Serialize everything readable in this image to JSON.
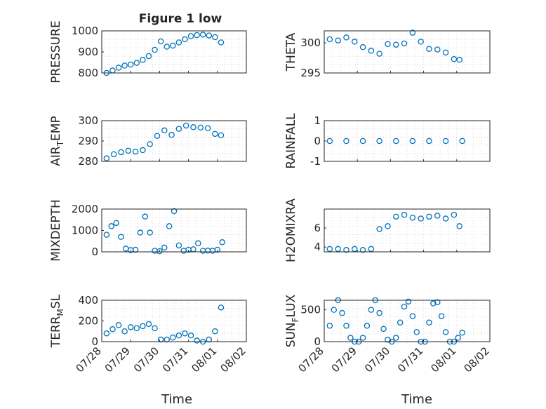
{
  "title": "Figure 1 low",
  "xlabel": "Time",
  "colors": {
    "marker": "#0072BD",
    "axis": "#262626",
    "grid": "#d0d0d0",
    "background": "#ffffff"
  },
  "chart_data": [
    {
      "type": "scatter",
      "marker": "open-circle",
      "ylabel": "PRESSURE",
      "ylim": [
        800,
        1000
      ],
      "yticks": [
        800,
        900,
        1000
      ],
      "xlim": [
        "07/28",
        "08/02"
      ],
      "xticks": [],
      "grid": true,
      "x": [
        "07/28 04:00",
        "07/28 09:00",
        "07/28 14:00",
        "07/28 19:00",
        "07/29 00:00",
        "07/29 05:00",
        "07/29 10:00",
        "07/29 15:00",
        "07/29 20:00",
        "07/30 01:00",
        "07/30 06:00",
        "07/30 11:00",
        "07/30 16:00",
        "07/30 21:00",
        "07/31 02:00",
        "07/31 07:00",
        "07/31 12:00",
        "07/31 17:00",
        "07/31 22:00",
        "08/01 03:00"
      ],
      "y": [
        800,
        812,
        825,
        835,
        840,
        848,
        862,
        880,
        910,
        950,
        925,
        930,
        945,
        960,
        975,
        980,
        982,
        978,
        970,
        945
      ]
    },
    {
      "type": "scatter",
      "marker": "open-circle",
      "ylabel": "THETA",
      "ylim": [
        295,
        302
      ],
      "yticks": [
        295,
        300
      ],
      "xlim": [
        "07/28",
        "08/02"
      ],
      "xticks": [],
      "grid": true,
      "x": [
        "07/28 04:00",
        "07/28 10:00",
        "07/28 16:00",
        "07/28 22:00",
        "07/29 04:00",
        "07/29 10:00",
        "07/29 16:00",
        "07/29 22:00",
        "07/30 04:00",
        "07/30 10:00",
        "07/30 16:00",
        "07/30 22:00",
        "07/31 04:00",
        "07/31 10:00",
        "07/31 16:00",
        "07/31 22:00",
        "08/01 02:00"
      ],
      "y": [
        300.6,
        300.4,
        300.9,
        300.2,
        299.3,
        298.7,
        298.2,
        299.8,
        299.7,
        299.9,
        301.7,
        300.2,
        299.0,
        298.9,
        298.4,
        297.3,
        297.2
      ]
    },
    {
      "type": "scatter",
      "marker": "open-circle",
      "ylabel": "AIR_TEMP",
      "ylabel_display": "AIRTEMP",
      "ylim": [
        280,
        300
      ],
      "yticks": [
        280,
        290,
        300
      ],
      "xlim": [
        "07/28",
        "08/02"
      ],
      "xticks": [],
      "grid": true,
      "x": [
        "07/28 04:00",
        "07/28 10:00",
        "07/28 16:00",
        "07/28 22:00",
        "07/29 04:00",
        "07/29 10:00",
        "07/29 16:00",
        "07/29 22:00",
        "07/30 04:00",
        "07/30 10:00",
        "07/30 16:00",
        "07/30 22:00",
        "07/31 04:00",
        "07/31 10:00",
        "07/31 16:00",
        "07/31 22:00",
        "08/01 03:00"
      ],
      "y": [
        281.5,
        283.5,
        284.5,
        285.2,
        284.8,
        285.5,
        288.5,
        292.5,
        295.2,
        293.0,
        296.0,
        297.6,
        296.8,
        296.6,
        296.3,
        293.5,
        292.8
      ]
    },
    {
      "type": "scatter",
      "marker": "open-circle",
      "ylabel": "RAINFALL",
      "ylim": [
        -1,
        1
      ],
      "yticks": [
        -1,
        0,
        1
      ],
      "xlim": [
        "07/28",
        "08/02"
      ],
      "xticks": [],
      "grid": true,
      "x": [
        "07/28 04:00",
        "07/28 16:00",
        "07/29 04:00",
        "07/29 16:00",
        "07/30 04:00",
        "07/30 16:00",
        "07/31 04:00",
        "07/31 16:00",
        "08/01 04:00"
      ],
      "y": [
        0,
        0,
        0,
        0,
        0,
        0,
        0,
        0,
        0
      ]
    },
    {
      "type": "scatter",
      "marker": "open-circle",
      "ylabel": "MIXDEPTH",
      "ylim": [
        0,
        2000
      ],
      "yticks": [
        0,
        1000,
        2000
      ],
      "xlim": [
        "07/28",
        "08/02"
      ],
      "xticks": [],
      "grid": true,
      "x": [
        "07/28 04:00",
        "07/28 08:00",
        "07/28 12:00",
        "07/28 16:00",
        "07/28 20:00",
        "07/29 00:00",
        "07/29 04:00",
        "07/29 08:00",
        "07/29 12:00",
        "07/29 16:00",
        "07/29 20:00",
        "07/30 00:00",
        "07/30 04:00",
        "07/30 08:00",
        "07/30 12:00",
        "07/30 16:00",
        "07/30 20:00",
        "07/31 00:00",
        "07/31 04:00",
        "07/31 08:00",
        "07/31 12:00",
        "07/31 16:00",
        "07/31 20:00",
        "08/01 00:00",
        "08/01 04:00"
      ],
      "y": [
        800,
        1200,
        1350,
        700,
        150,
        80,
        100,
        900,
        1650,
        900,
        50,
        30,
        200,
        1200,
        1900,
        300,
        50,
        100,
        120,
        400,
        50,
        60,
        50,
        100,
        450
      ]
    },
    {
      "type": "scatter",
      "marker": "open-circle",
      "ylabel": "H2OMIXRA",
      "ylim": [
        3.5,
        8
      ],
      "yticks": [
        4,
        6
      ],
      "xlim": [
        "07/28",
        "08/02"
      ],
      "xticks": [],
      "grid": true,
      "x": [
        "07/28 04:00",
        "07/28 10:00",
        "07/28 16:00",
        "07/28 22:00",
        "07/29 04:00",
        "07/29 10:00",
        "07/29 16:00",
        "07/29 22:00",
        "07/30 04:00",
        "07/30 10:00",
        "07/30 16:00",
        "07/30 22:00",
        "07/31 04:00",
        "07/31 10:00",
        "07/31 16:00",
        "07/31 22:00",
        "08/01 02:00"
      ],
      "y": [
        3.8,
        3.8,
        3.7,
        3.8,
        3.7,
        3.8,
        5.9,
        6.2,
        7.2,
        7.4,
        7.1,
        7.0,
        7.2,
        7.3,
        7.0,
        7.4,
        6.2
      ]
    },
    {
      "type": "scatter",
      "marker": "open-circle",
      "ylabel": "TERR_MSL",
      "ylabel_display": "TERRMSL",
      "ylim": [
        0,
        400
      ],
      "yticks": [
        0,
        200,
        400
      ],
      "xlim": [
        "07/28",
        "08/02"
      ],
      "xticks": [
        "07/28",
        "07/29",
        "07/30",
        "07/31",
        "08/01",
        "08/02"
      ],
      "grid": true,
      "x": [
        "07/28 04:00",
        "07/28 09:00",
        "07/28 14:00",
        "07/28 19:00",
        "07/29 00:00",
        "07/29 05:00",
        "07/29 10:00",
        "07/29 15:00",
        "07/29 20:00",
        "07/30 01:00",
        "07/30 06:00",
        "07/30 11:00",
        "07/30 16:00",
        "07/30 21:00",
        "07/31 02:00",
        "07/31 07:00",
        "07/31 12:00",
        "07/31 17:00",
        "07/31 22:00",
        "08/01 03:00"
      ],
      "y": [
        80,
        120,
        160,
        100,
        140,
        130,
        150,
        170,
        130,
        20,
        20,
        40,
        60,
        80,
        60,
        10,
        0,
        20,
        100,
        330
      ]
    },
    {
      "type": "scatter",
      "marker": "open-circle",
      "ylabel": "SUN_FLUX",
      "ylabel_display": "SUNFLUX",
      "ylim": [
        0,
        650
      ],
      "yticks": [
        0,
        500
      ],
      "xlim": [
        "07/28",
        "08/02"
      ],
      "xticks": [
        "07/28",
        "07/29",
        "07/30",
        "07/31",
        "08/01",
        "08/02"
      ],
      "grid": true,
      "x": [
        "07/28 04:00",
        "07/28 07:00",
        "07/28 10:00",
        "07/28 13:00",
        "07/28 16:00",
        "07/28 19:00",
        "07/28 22:00",
        "07/29 01:00",
        "07/29 04:00",
        "07/29 07:00",
        "07/29 10:00",
        "07/29 13:00",
        "07/29 16:00",
        "07/29 19:00",
        "07/29 22:00",
        "07/30 01:00",
        "07/30 04:00",
        "07/30 07:00",
        "07/30 10:00",
        "07/30 13:00",
        "07/30 16:00",
        "07/30 19:00",
        "07/30 22:00",
        "07/31 01:00",
        "07/31 04:00",
        "07/31 07:00",
        "07/31 10:00",
        "07/31 13:00",
        "07/31 16:00",
        "07/31 19:00",
        "07/31 22:00",
        "08/01 01:00",
        "08/01 04:00"
      ],
      "y": [
        250,
        500,
        650,
        450,
        250,
        60,
        0,
        0,
        60,
        250,
        500,
        650,
        450,
        200,
        30,
        0,
        60,
        300,
        550,
        630,
        400,
        150,
        0,
        0,
        300,
        600,
        620,
        400,
        150,
        0,
        0,
        60,
        140
      ]
    }
  ]
}
